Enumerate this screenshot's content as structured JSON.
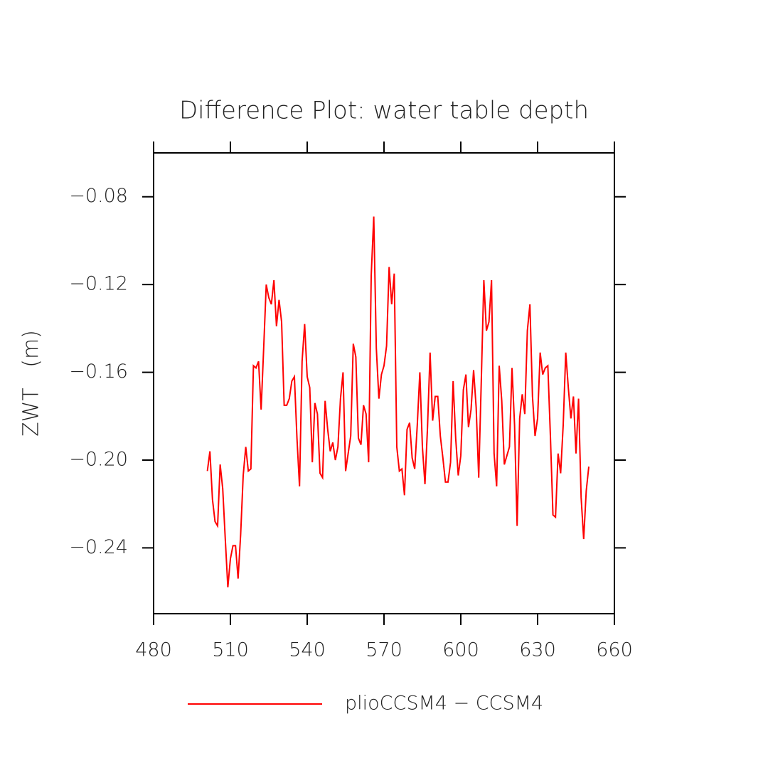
{
  "chart_data": {
    "type": "line",
    "title": "Difference Plot: water table depth",
    "y_label": "ZWT   (m)",
    "x": [
      501,
      502,
      503,
      504,
      505,
      506,
      507,
      508,
      509,
      510,
      511,
      512,
      513,
      514,
      515,
      516,
      517,
      518,
      519,
      520,
      521,
      522,
      523,
      524,
      525,
      526,
      527,
      528,
      529,
      530,
      531,
      532,
      533,
      534,
      535,
      536,
      537,
      538,
      539,
      540,
      541,
      542,
      543,
      544,
      545,
      546,
      547,
      548,
      549,
      550,
      551,
      552,
      553,
      554,
      555,
      556,
      557,
      558,
      559,
      560,
      561,
      562,
      563,
      564,
      565,
      566,
      567,
      568,
      569,
      570,
      571,
      572,
      573,
      574,
      575,
      576,
      577,
      578,
      579,
      580,
      581,
      582,
      583,
      584,
      585,
      586,
      587,
      588,
      589,
      590,
      591,
      592,
      593,
      594,
      595,
      596,
      597,
      598,
      599,
      600,
      601,
      602,
      603,
      604,
      605,
      606,
      607,
      608,
      609,
      610,
      611,
      612,
      613,
      614,
      615,
      616,
      617,
      618,
      619,
      620,
      621,
      622,
      623,
      624,
      625,
      626,
      627,
      628,
      629,
      630,
      631,
      632,
      633,
      634,
      635,
      636,
      637,
      638,
      639,
      640,
      641,
      642,
      643,
      644,
      645,
      646,
      647,
      648,
      649,
      650
    ],
    "series": [
      {
        "name": "plioCCSM4 − CCSM4",
        "color": "#ff0000",
        "values": [
          -0.205,
          -0.196,
          -0.218,
          -0.228,
          -0.23,
          -0.202,
          -0.213,
          -0.236,
          -0.258,
          -0.245,
          -0.239,
          -0.239,
          -0.254,
          -0.234,
          -0.207,
          -0.194,
          -0.205,
          -0.204,
          -0.157,
          -0.158,
          -0.155,
          -0.177,
          -0.149,
          -0.12,
          -0.126,
          -0.129,
          -0.118,
          -0.139,
          -0.127,
          -0.137,
          -0.175,
          -0.175,
          -0.172,
          -0.164,
          -0.162,
          -0.19,
          -0.212,
          -0.155,
          -0.138,
          -0.162,
          -0.167,
          -0.201,
          -0.174,
          -0.179,
          -0.206,
          -0.208,
          -0.173,
          -0.186,
          -0.196,
          -0.192,
          -0.2,
          -0.194,
          -0.172,
          -0.16,
          -0.205,
          -0.197,
          -0.189,
          -0.147,
          -0.153,
          -0.19,
          -0.193,
          -0.175,
          -0.179,
          -0.201,
          -0.116,
          -0.089,
          -0.149,
          -0.172,
          -0.161,
          -0.157,
          -0.148,
          -0.112,
          -0.129,
          -0.115,
          -0.194,
          -0.205,
          -0.204,
          -0.216,
          -0.186,
          -0.183,
          -0.199,
          -0.204,
          -0.184,
          -0.16,
          -0.194,
          -0.211,
          -0.185,
          -0.151,
          -0.182,
          -0.171,
          -0.171,
          -0.189,
          -0.199,
          -0.21,
          -0.21,
          -0.201,
          -0.164,
          -0.19,
          -0.207,
          -0.198,
          -0.168,
          -0.161,
          -0.185,
          -0.177,
          -0.159,
          -0.176,
          -0.208,
          -0.164,
          -0.118,
          -0.141,
          -0.137,
          -0.118,
          -0.197,
          -0.212,
          -0.157,
          -0.173,
          -0.202,
          -0.198,
          -0.194,
          -0.158,
          -0.184,
          -0.23,
          -0.181,
          -0.17,
          -0.179,
          -0.141,
          -0.129,
          -0.171,
          -0.189,
          -0.181,
          -0.151,
          -0.161,
          -0.158,
          -0.157,
          -0.189,
          -0.225,
          -0.226,
          -0.197,
          -0.206,
          -0.184,
          -0.151,
          -0.167,
          -0.181,
          -0.171,
          -0.197,
          -0.172,
          -0.217,
          -0.236,
          -0.214,
          -0.203
        ]
      }
    ],
    "xlim": [
      480,
      660
    ],
    "xticks": [
      480,
      510,
      540,
      570,
      600,
      630,
      660
    ],
    "ylim": [
      -0.27,
      -0.06
    ],
    "yticks": [
      {
        "value": -0.24,
        "label": "−0.24"
      },
      {
        "value": -0.2,
        "label": "−0.20"
      },
      {
        "value": -0.16,
        "label": "−0.16"
      },
      {
        "value": -0.12,
        "label": "−0.12"
      },
      {
        "value": -0.08,
        "label": "−0.08"
      }
    ],
    "legend": "bottom"
  }
}
